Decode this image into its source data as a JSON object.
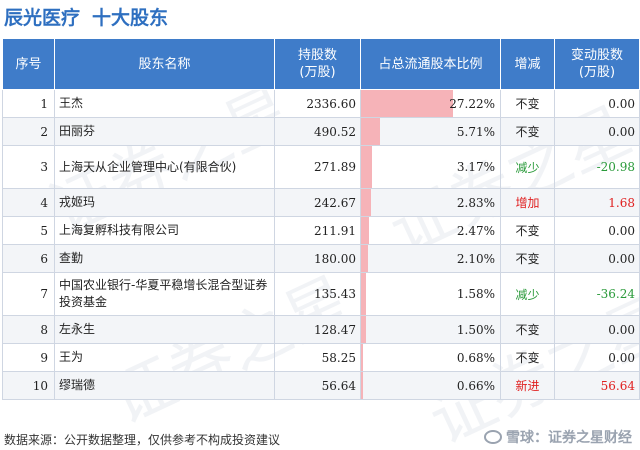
{
  "title": {
    "company": "辰光医疗",
    "subtitle": "十大股东"
  },
  "table": {
    "headers": [
      "序号",
      "股东名称",
      "持股数\n(万股)",
      "占总流通股本比例",
      "增减",
      "变动股数\n(万股)"
    ],
    "rows": [
      {
        "idx": "1",
        "name": "王杰",
        "shares": "2336.60",
        "ratio": "27.22%",
        "ratio_value": 27.22,
        "change": "不变",
        "change_type": "flat",
        "delta": "0.00"
      },
      {
        "idx": "2",
        "name": "田丽芬",
        "shares": "490.52",
        "ratio": "5.71%",
        "ratio_value": 5.71,
        "change": "不变",
        "change_type": "flat",
        "delta": "0.00"
      },
      {
        "idx": "3",
        "name": "上海天从企业管理中心(有限合伙)",
        "shares": "271.89",
        "ratio": "3.17%",
        "ratio_value": 3.17,
        "change": "减少",
        "change_type": "down",
        "delta": "-20.98"
      },
      {
        "idx": "4",
        "name": "戎姬玛",
        "shares": "242.67",
        "ratio": "2.83%",
        "ratio_value": 2.83,
        "change": "增加",
        "change_type": "up",
        "delta": "1.68"
      },
      {
        "idx": "5",
        "name": "上海复孵科技有限公司",
        "shares": "211.91",
        "ratio": "2.47%",
        "ratio_value": 2.47,
        "change": "不变",
        "change_type": "flat",
        "delta": "0.00"
      },
      {
        "idx": "6",
        "name": "查勤",
        "shares": "180.00",
        "ratio": "2.10%",
        "ratio_value": 2.1,
        "change": "不变",
        "change_type": "flat",
        "delta": "0.00"
      },
      {
        "idx": "7",
        "name": "中国农业银行-华夏平稳增长混合型证券投资基金",
        "shares": "135.43",
        "ratio": "1.58%",
        "ratio_value": 1.58,
        "change": "减少",
        "change_type": "down",
        "delta": "-36.24"
      },
      {
        "idx": "8",
        "name": "左永生",
        "shares": "128.47",
        "ratio": "1.50%",
        "ratio_value": 1.5,
        "change": "不变",
        "change_type": "flat",
        "delta": "0.00"
      },
      {
        "idx": "9",
        "name": "王为",
        "shares": "58.25",
        "ratio": "0.68%",
        "ratio_value": 0.68,
        "change": "不变",
        "change_type": "flat",
        "delta": "0.00"
      },
      {
        "idx": "10",
        "name": "缪瑞德",
        "shares": "56.64",
        "ratio": "0.66%",
        "ratio_value": 0.66,
        "change": "新进",
        "change_type": "up",
        "delta": "56.64"
      }
    ]
  },
  "footer": {
    "source": "数据来源：公开数据整理，仅供参考不构成投资建议",
    "brand": "雪球：证券之星财经"
  },
  "watermark": "证券之星",
  "colors": {
    "header_bg": "#3f7cc9",
    "title": "#2e6fc0",
    "bar": "#f6b3b8",
    "up": "#e02020",
    "down": "#2a9a3a"
  }
}
